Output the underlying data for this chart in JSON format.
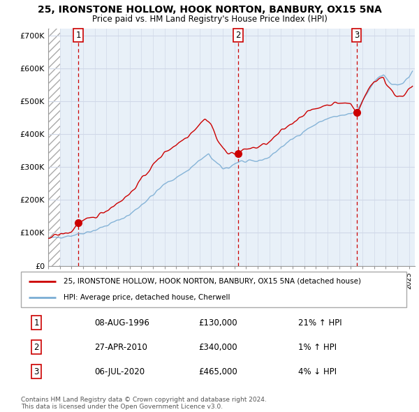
{
  "title_line1": "25, IRONSTONE HOLLOW, HOOK NORTON, BANBURY, OX15 5NA",
  "title_line2": "Price paid vs. HM Land Registry's House Price Index (HPI)",
  "sale_color": "#cc0000",
  "hpi_color": "#7aadd4",
  "grid_color": "#d0d8e8",
  "bg_color": "#e8f0f8",
  "ylim": [
    0,
    720000
  ],
  "yticks": [
    0,
    100000,
    200000,
    300000,
    400000,
    500000,
    600000,
    700000
  ],
  "ytick_labels": [
    "£0",
    "£100K",
    "£200K",
    "£300K",
    "£400K",
    "£500K",
    "£600K",
    "£700K"
  ],
  "xlim_start": 1994.0,
  "xlim_end": 2025.5,
  "sale_points": [
    {
      "year": 1996.58,
      "value": 130000,
      "label": "1"
    },
    {
      "year": 2010.33,
      "value": 340000,
      "label": "2"
    },
    {
      "year": 2020.5,
      "value": 465000,
      "label": "3"
    }
  ],
  "vline_years": [
    1996.58,
    2010.33,
    2020.5
  ],
  "legend_sale_label": "25, IRONSTONE HOLLOW, HOOK NORTON, BANBURY, OX15 5NA (detached house)",
  "legend_hpi_label": "HPI: Average price, detached house, Cherwell",
  "table_rows": [
    {
      "num": "1",
      "date": "08-AUG-1996",
      "price": "£130,000",
      "hpi": "21% ↑ HPI"
    },
    {
      "num": "2",
      "date": "27-APR-2010",
      "price": "£340,000",
      "hpi": "1% ↑ HPI"
    },
    {
      "num": "3",
      "date": "06-JUL-2020",
      "price": "£465,000",
      "hpi": "4% ↓ HPI"
    }
  ],
  "copyright_text": "Contains HM Land Registry data © Crown copyright and database right 2024.\nThis data is licensed under the Open Government Licence v3.0."
}
